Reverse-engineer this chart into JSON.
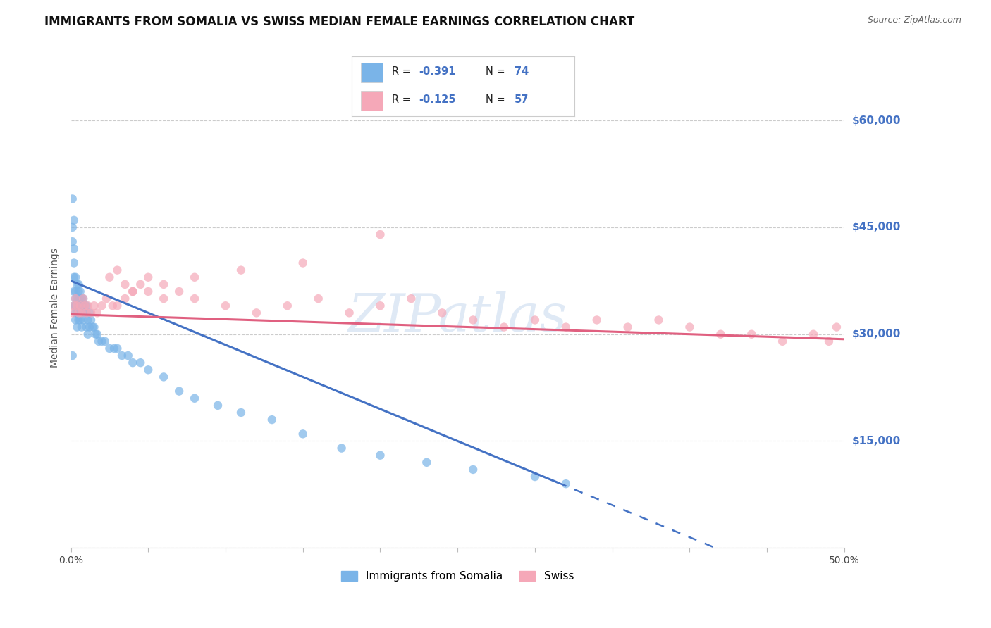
{
  "title": "IMMIGRANTS FROM SOMALIA VS SWISS MEDIAN FEMALE EARNINGS CORRELATION CHART",
  "source": "Source: ZipAtlas.com",
  "ylabel": "Median Female Earnings",
  "xlim": [
    0.0,
    0.5
  ],
  "ylim": [
    0,
    67500
  ],
  "xticks": [
    0.0,
    0.05,
    0.1,
    0.15,
    0.2,
    0.25,
    0.3,
    0.35,
    0.4,
    0.45,
    0.5
  ],
  "xtick_labels_show": [
    "0.0%",
    "",
    "",
    "",
    "",
    "",
    "",
    "",
    "",
    "",
    "50.0%"
  ],
  "yticks": [
    0,
    15000,
    30000,
    45000,
    60000
  ],
  "right_ytick_vals": [
    15000,
    30000,
    45000,
    60000
  ],
  "right_ytick_labels": [
    "$15,000",
    "$30,000",
    "$45,000",
    "$60,000"
  ],
  "grid_color": "#cccccc",
  "background_color": "#ffffff",
  "somalia_color": "#7ab4e8",
  "swiss_color": "#f5a8b8",
  "blue_line_color": "#4472c4",
  "pink_line_color": "#e06080",
  "somalia_points": {
    "x": [
      0.001,
      0.001,
      0.001,
      0.002,
      0.002,
      0.002,
      0.002,
      0.002,
      0.002,
      0.003,
      0.003,
      0.003,
      0.003,
      0.003,
      0.003,
      0.004,
      0.004,
      0.004,
      0.004,
      0.005,
      0.005,
      0.005,
      0.005,
      0.005,
      0.006,
      0.006,
      0.006,
      0.006,
      0.007,
      0.007,
      0.007,
      0.007,
      0.008,
      0.008,
      0.008,
      0.009,
      0.009,
      0.01,
      0.01,
      0.01,
      0.011,
      0.011,
      0.012,
      0.012,
      0.013,
      0.014,
      0.015,
      0.016,
      0.017,
      0.018,
      0.02,
      0.022,
      0.025,
      0.028,
      0.03,
      0.033,
      0.037,
      0.04,
      0.045,
      0.05,
      0.06,
      0.07,
      0.08,
      0.095,
      0.11,
      0.13,
      0.15,
      0.175,
      0.2,
      0.23,
      0.26,
      0.3,
      0.32,
      0.001
    ],
    "y": [
      49000,
      45000,
      43000,
      46000,
      42000,
      40000,
      38000,
      36000,
      34000,
      38000,
      36000,
      35000,
      34000,
      33000,
      32000,
      37000,
      35000,
      33000,
      31000,
      37000,
      36000,
      35000,
      34000,
      32000,
      36000,
      35000,
      34000,
      32000,
      35000,
      34000,
      33000,
      31000,
      35000,
      34000,
      32000,
      34000,
      33000,
      34000,
      33000,
      31000,
      32000,
      30000,
      33000,
      31000,
      32000,
      31000,
      31000,
      30000,
      30000,
      29000,
      29000,
      29000,
      28000,
      28000,
      28000,
      27000,
      27000,
      26000,
      26000,
      25000,
      24000,
      22000,
      21000,
      20000,
      19000,
      18000,
      16000,
      14000,
      13000,
      12000,
      11000,
      10000,
      9000,
      27000
    ]
  },
  "swiss_points": {
    "x": [
      0.001,
      0.002,
      0.003,
      0.004,
      0.005,
      0.006,
      0.007,
      0.008,
      0.009,
      0.01,
      0.011,
      0.013,
      0.015,
      0.017,
      0.02,
      0.023,
      0.027,
      0.03,
      0.035,
      0.04,
      0.045,
      0.05,
      0.06,
      0.07,
      0.08,
      0.1,
      0.12,
      0.14,
      0.16,
      0.18,
      0.2,
      0.22,
      0.24,
      0.26,
      0.28,
      0.3,
      0.32,
      0.34,
      0.36,
      0.38,
      0.4,
      0.42,
      0.44,
      0.46,
      0.48,
      0.49,
      0.495,
      0.025,
      0.03,
      0.035,
      0.04,
      0.05,
      0.06,
      0.08,
      0.11,
      0.15,
      0.2
    ],
    "y": [
      33000,
      34000,
      35000,
      34000,
      33000,
      34000,
      33000,
      35000,
      34000,
      33000,
      34000,
      33000,
      34000,
      33000,
      34000,
      35000,
      34000,
      34000,
      35000,
      36000,
      37000,
      36000,
      35000,
      36000,
      35000,
      34000,
      33000,
      34000,
      35000,
      33000,
      34000,
      35000,
      33000,
      32000,
      31000,
      32000,
      31000,
      32000,
      31000,
      32000,
      31000,
      30000,
      30000,
      29000,
      30000,
      29000,
      31000,
      38000,
      39000,
      37000,
      36000,
      38000,
      37000,
      38000,
      39000,
      40000,
      44000
    ]
  },
  "regression_blue_x0": 0.0,
  "regression_blue_y0": 37500,
  "regression_blue_slope": -90000,
  "regression_blue_solid_end_x": 0.315,
  "regression_pink_x0": 0.0,
  "regression_pink_y0": 32800,
  "regression_pink_slope": -7000,
  "legend_R_blue": "-0.391",
  "legend_N_blue": "74",
  "legend_R_pink": "-0.125",
  "legend_N_pink": "57",
  "watermark": "ZIPatlas",
  "title_fontsize": 12,
  "axis_label_fontsize": 10,
  "tick_fontsize": 10
}
